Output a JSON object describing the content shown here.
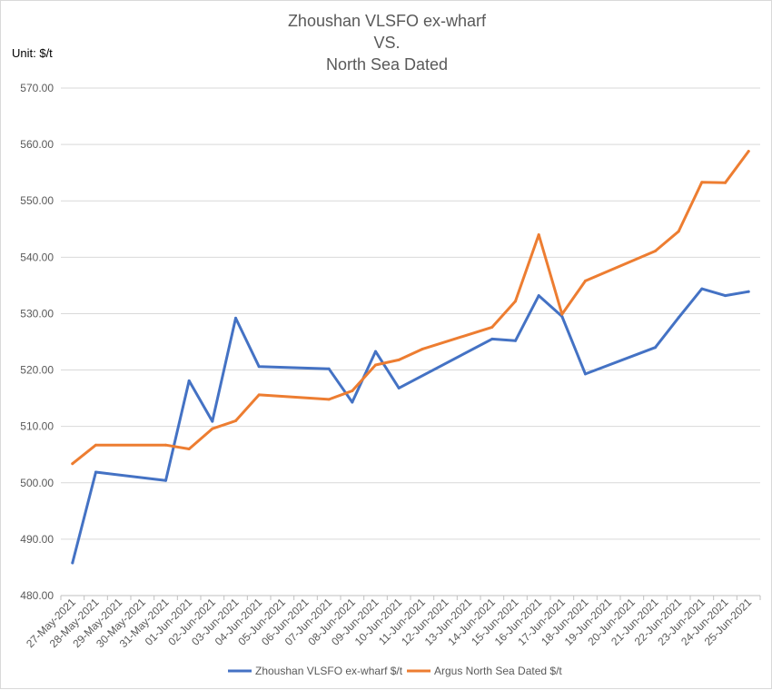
{
  "chart_data": {
    "type": "line",
    "title_lines": [
      "Zhoushan VLSFO ex-wharf",
      "VS.",
      "North Sea Dated"
    ],
    "unit_label": "Unit: $/t",
    "ylim": [
      480,
      570
    ],
    "y_ticks": [
      "480.00",
      "490.00",
      "500.00",
      "510.00",
      "520.00",
      "530.00",
      "540.00",
      "550.00",
      "560.00",
      "570.00"
    ],
    "categories": [
      "27-May-2021",
      "28-May-2021",
      "29-May-2021",
      "30-May-2021",
      "31-May-2021",
      "01-Jun-2021",
      "02-Jun-2021",
      "03-Jun-2021",
      "04-Jun-2021",
      "05-Jun-2021",
      "06-Jun-2021",
      "07-Jun-2021",
      "08-Jun-2021",
      "09-Jun-2021",
      "10-Jun-2021",
      "11-Jun-2021",
      "12-Jun-2021",
      "13-Jun-2021",
      "14-Jun-2021",
      "15-Jun-2021",
      "16-Jun-2021",
      "17-Jun-2021",
      "18-Jun-2021",
      "19-Jun-2021",
      "20-Jun-2021",
      "21-Jun-2021",
      "22-Jun-2021",
      "23-Jun-2021",
      "24-Jun-2021",
      "25-Jun-2021"
    ],
    "grid": true,
    "legend_position": "bottom",
    "series": [
      {
        "name": "Zhoushan VLSFO ex-wharf $/t",
        "color": "#4472C4",
        "points": [
          [
            "27-May-2021",
            485.8
          ],
          [
            "28-May-2021",
            501.9
          ],
          [
            "31-May-2021",
            500.4
          ],
          [
            "01-Jun-2021",
            518.1
          ],
          [
            "02-Jun-2021",
            510.9
          ],
          [
            "03-Jun-2021",
            529.2
          ],
          [
            "04-Jun-2021",
            520.6
          ],
          [
            "07-Jun-2021",
            520.2
          ],
          [
            "08-Jun-2021",
            514.3
          ],
          [
            "09-Jun-2021",
            523.3
          ],
          [
            "10-Jun-2021",
            516.8
          ],
          [
            "14-Jun-2021",
            525.5
          ],
          [
            "15-Jun-2021",
            525.2
          ],
          [
            "16-Jun-2021",
            533.2
          ],
          [
            "17-Jun-2021",
            529.5
          ],
          [
            "18-Jun-2021",
            519.3
          ],
          [
            "21-Jun-2021",
            524.0
          ],
          [
            "22-Jun-2021",
            529.3
          ],
          [
            "23-Jun-2021",
            534.4
          ],
          [
            "24-Jun-2021",
            533.2
          ],
          [
            "25-Jun-2021",
            533.9
          ]
        ]
      },
      {
        "name": "Argus North Sea Dated $/t",
        "color": "#ED7D31",
        "points": [
          [
            "27-May-2021",
            503.4
          ],
          [
            "28-May-2021",
            506.7
          ],
          [
            "31-May-2021",
            506.7
          ],
          [
            "01-Jun-2021",
            506.0
          ],
          [
            "02-Jun-2021",
            509.6
          ],
          [
            "03-Jun-2021",
            511.0
          ],
          [
            "04-Jun-2021",
            515.6
          ],
          [
            "07-Jun-2021",
            514.8
          ],
          [
            "08-Jun-2021",
            516.3
          ],
          [
            "09-Jun-2021",
            520.9
          ],
          [
            "10-Jun-2021",
            521.8
          ],
          [
            "11-Jun-2021",
            523.7
          ],
          [
            "14-Jun-2021",
            527.6
          ],
          [
            "15-Jun-2021",
            532.2
          ],
          [
            "16-Jun-2021",
            544.0
          ],
          [
            "17-Jun-2021",
            529.9
          ],
          [
            "18-Jun-2021",
            535.8
          ],
          [
            "21-Jun-2021",
            541.1
          ],
          [
            "22-Jun-2021",
            544.6
          ],
          [
            "23-Jun-2021",
            553.3
          ],
          [
            "24-Jun-2021",
            553.2
          ],
          [
            "25-Jun-2021",
            558.8
          ]
        ]
      }
    ]
  }
}
